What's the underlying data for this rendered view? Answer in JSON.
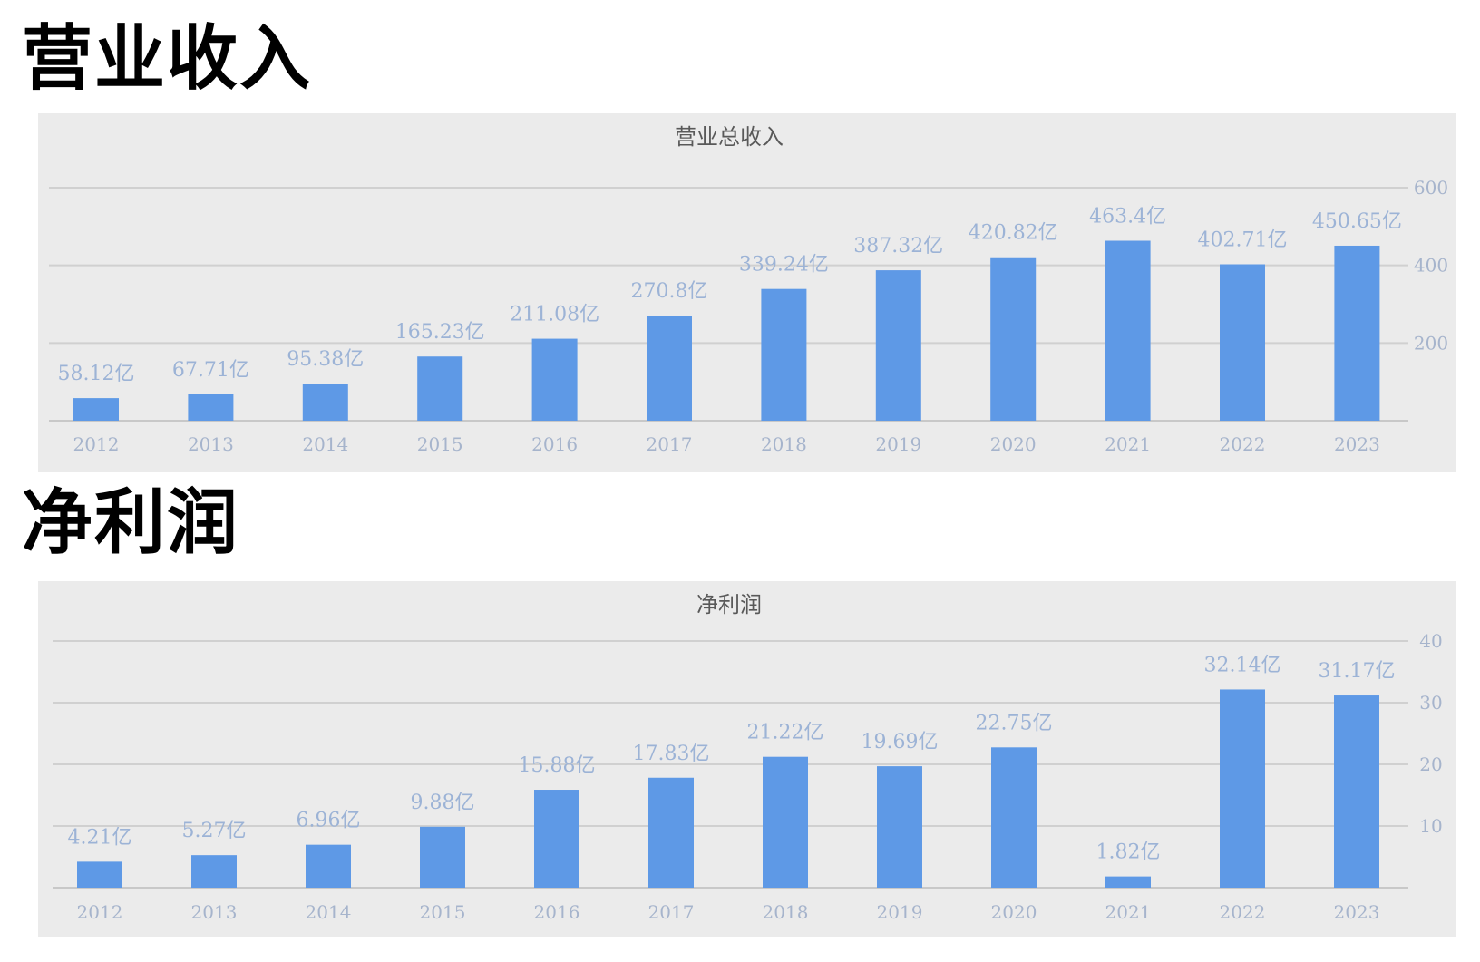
{
  "headings": {
    "revenue": "营业收入",
    "profit": "净利润"
  },
  "colors": {
    "bar": "#5e99e6",
    "label": "#9cb3d6",
    "panel": "#ebebeb"
  },
  "chart_data": [
    {
      "type": "bar",
      "title": "营业总收入",
      "categories": [
        "2012",
        "2013",
        "2014",
        "2015",
        "2016",
        "2017",
        "2018",
        "2019",
        "2020",
        "2021",
        "2022",
        "2023"
      ],
      "values": [
        58.12,
        67.71,
        95.38,
        165.23,
        211.08,
        270.8,
        339.24,
        387.32,
        420.82,
        463.4,
        402.71,
        450.65
      ],
      "labels": [
        "58.12亿",
        "67.71亿",
        "95.38亿",
        "165.23亿",
        "211.08亿",
        "270.8亿",
        "339.24亿",
        "387.32亿",
        "420.82亿",
        "463.4亿",
        "402.71亿",
        "450.65亿"
      ],
      "yticks": [
        "200",
        "400",
        "600"
      ],
      "ylim": [
        0,
        600
      ],
      "grid": true
    },
    {
      "type": "bar",
      "title": "净利润",
      "categories": [
        "2012",
        "2013",
        "2014",
        "2015",
        "2016",
        "2017",
        "2018",
        "2019",
        "2020",
        "2021",
        "2022",
        "2023"
      ],
      "values": [
        4.21,
        5.27,
        6.96,
        9.88,
        15.88,
        17.83,
        21.22,
        19.69,
        22.75,
        1.82,
        32.14,
        31.17
      ],
      "labels": [
        "4.21亿",
        "5.27亿",
        "6.96亿",
        "9.88亿",
        "15.88亿",
        "17.83亿",
        "21.22亿",
        "19.69亿",
        "22.75亿",
        "1.82亿",
        "32.14亿",
        "31.17亿"
      ],
      "yticks": [
        "10",
        "20",
        "30",
        "40"
      ],
      "ylim": [
        0,
        40
      ],
      "grid": true
    }
  ]
}
